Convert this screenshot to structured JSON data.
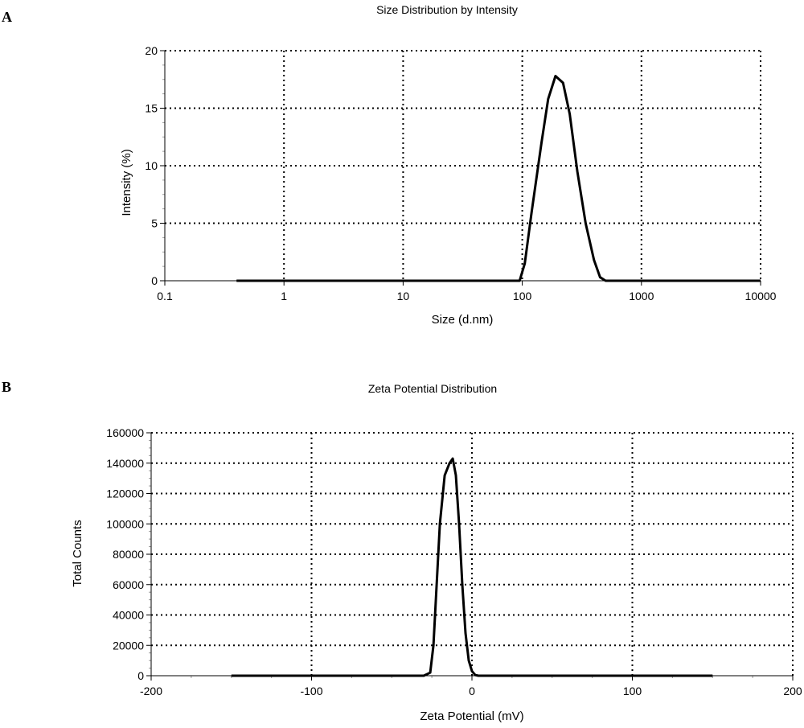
{
  "panels": [
    "A",
    "B"
  ],
  "chart_data": [
    {
      "type": "line",
      "title": "Size Distribution by Intensity",
      "xlabel": "Size (d.nm)",
      "ylabel": "Intensity (%)",
      "xscale": "log",
      "xlim": [
        0.1,
        10000
      ],
      "ylim": [
        0,
        20
      ],
      "xticks": [
        "0.1",
        "1",
        "10",
        "100",
        "1000",
        "10000"
      ],
      "yticks": [
        "0",
        "5",
        "10",
        "15",
        "20"
      ],
      "grid": true,
      "series": [
        {
          "x": [
            0.4,
            95,
            105,
            120,
            145,
            165,
            190,
            220,
            250,
            290,
            340,
            400,
            450,
            500,
            10000
          ],
          "y": [
            0,
            0,
            1.5,
            6,
            12,
            15.8,
            17.8,
            17.2,
            14.5,
            9.5,
            5,
            1.8,
            0.3,
            0,
            0
          ]
        }
      ]
    },
    {
      "type": "line",
      "title": "Zeta Potential Distribution",
      "xlabel": "Zeta Potential (mV)",
      "ylabel": "Total Counts",
      "xlim": [
        -200,
        200
      ],
      "ylim": [
        0,
        160000
      ],
      "xticks": [
        "-200",
        "-100",
        "0",
        "100",
        "200"
      ],
      "yticks": [
        "0",
        "20000",
        "40000",
        "60000",
        "80000",
        "100000",
        "120000",
        "140000",
        "160000"
      ],
      "grid": true,
      "series": [
        {
          "x": [
            -150,
            -30,
            -26,
            -24,
            -22,
            -20,
            -17,
            -14,
            -12,
            -10,
            -8,
            -6,
            -4,
            -2,
            0,
            2,
            4,
            6,
            150
          ],
          "y": [
            0,
            0,
            2000,
            20000,
            60000,
            100000,
            132000,
            140000,
            143000,
            132000,
            100000,
            60000,
            28000,
            10000,
            3000,
            500,
            0,
            0,
            0
          ]
        }
      ]
    }
  ]
}
